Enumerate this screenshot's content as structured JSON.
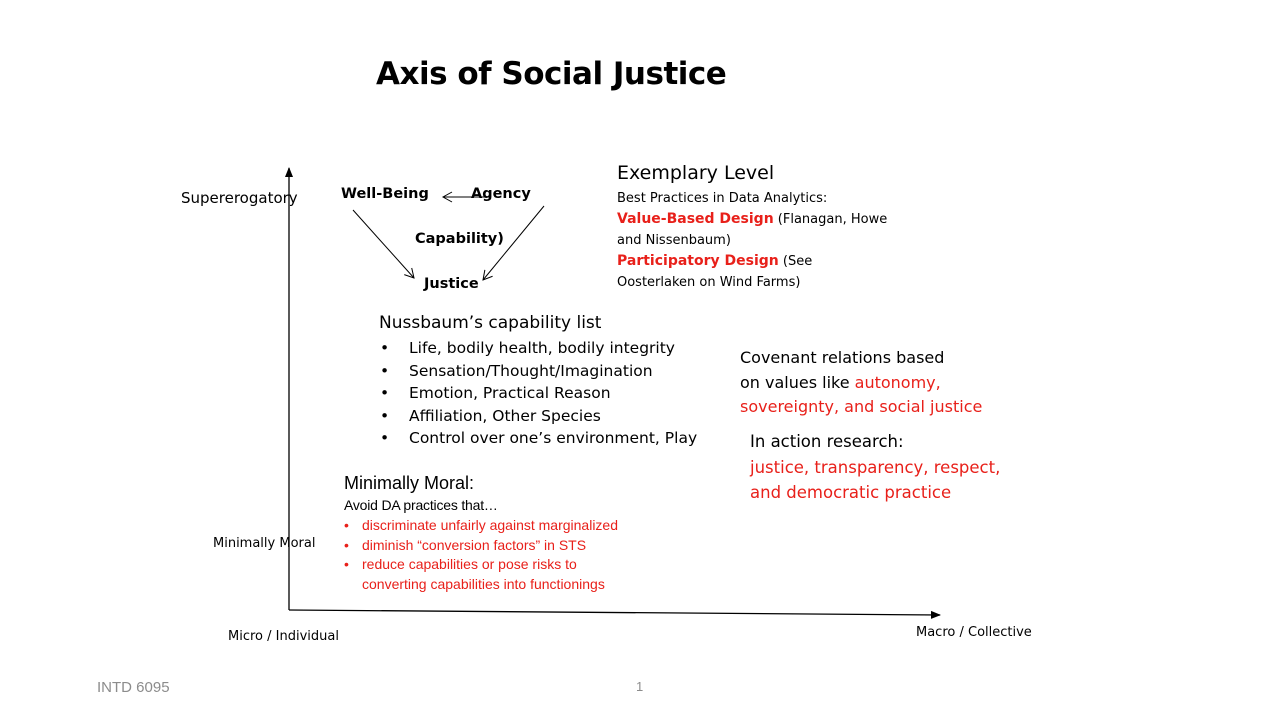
{
  "title": "Axis of Social Justice",
  "axis": {
    "y_top": "Supererogatory",
    "y_bottom": "Minimally Moral",
    "x_left": "Micro / Individual",
    "x_right": "Macro / Collective"
  },
  "capability_diagram": {
    "well_being": "Well-Being",
    "agency": "Agency",
    "capability": "Capability)",
    "justice": "Justice"
  },
  "exemplary": {
    "heading": "Exemplary Level",
    "subheading": "Best Practices in Data Analytics:",
    "vbd_label": "Value-Based Design",
    "vbd_cite_1": " (Flanagan, Howe",
    "vbd_cite_2": "and Nissenbaum)",
    "pd_label": "Participatory Design",
    "pd_cite_1": " (See",
    "pd_cite_2": "Oosterlaken on Wind Farms)"
  },
  "nussbaum": {
    "heading": "Nussbaum’s capability list",
    "items": [
      "Life, bodily health, bodily integrity",
      "Sensation/Thought/Imagination",
      "Emotion, Practical Reason",
      "Affiliation, Other Species",
      "Control over one’s environment, Play"
    ]
  },
  "covenant": {
    "line1": "Covenant relations based",
    "line2_prefix": "on values like ",
    "line2_red": "autonomy,",
    "line3_red": "sovereignty, and social justice"
  },
  "action_research": {
    "heading": "In action research:",
    "line1_red": "justice, transparency, respect,",
    "line2_red": "and democratic practice"
  },
  "minimally_moral": {
    "heading": "Minimally  Moral:",
    "subheading": "Avoid DA practices that…",
    "items": [
      "discriminate unfairly  against marginalized",
      "diminish “conversion factors” in STS",
      "reduce capabilities or pose risks to"
    ],
    "item3_cont": "converting  capabilities into functionings"
  },
  "footer": {
    "course": "INTD  6095",
    "page": "1"
  },
  "colors": {
    "accent_red": "#e8201a",
    "footer_gray": "#8c8c8c"
  }
}
